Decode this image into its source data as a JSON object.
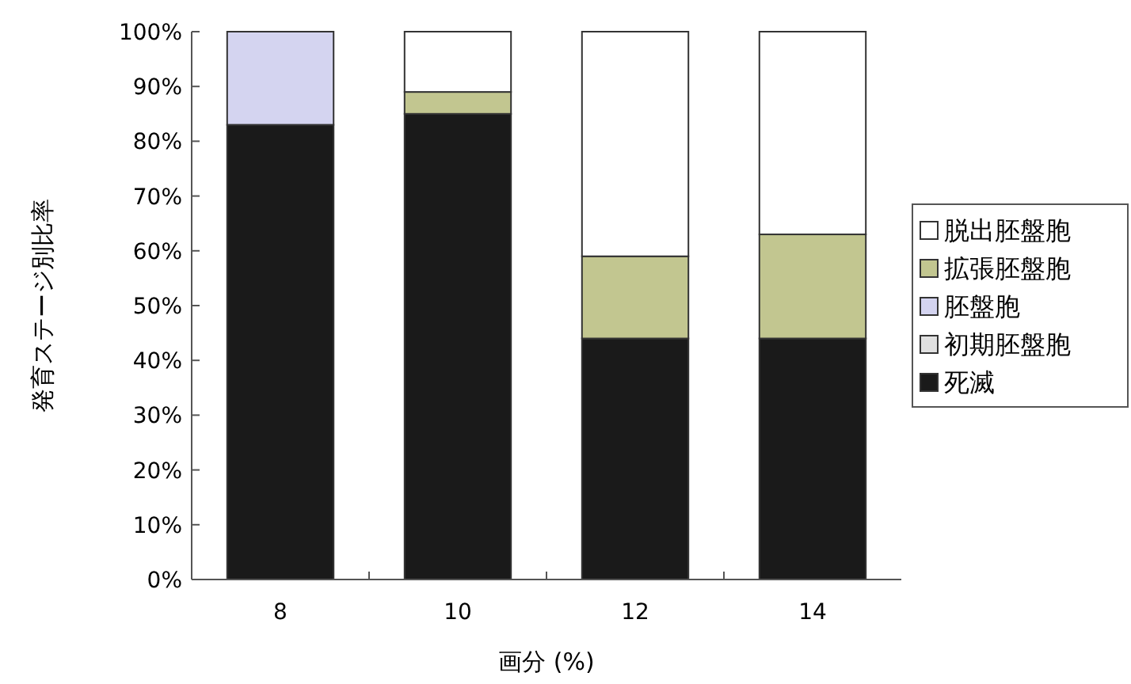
{
  "chart_data": {
    "type": "bar",
    "stacked": true,
    "xlabel": "画分 (%)",
    "ylabel": "発育ステージ別比率",
    "categories": [
      "8",
      "10",
      "12",
      "14"
    ],
    "series": [
      {
        "name": "死滅",
        "color": "#1a1a1a",
        "values": [
          83,
          85,
          44,
          44
        ]
      },
      {
        "name": "初期胚盤胞",
        "color": "#e0e0e0",
        "values": [
          0,
          0,
          0,
          0
        ]
      },
      {
        "name": "胚盤胞",
        "color": "#d4d4f0",
        "values": [
          17,
          0,
          0,
          0
        ]
      },
      {
        "name": "拡張胚盤胞",
        "color": "#c2c690",
        "values": [
          0,
          4,
          15,
          19
        ]
      },
      {
        "name": "脱出胚盤胞",
        "color": "#ffffff",
        "values": [
          0,
          11,
          41,
          37
        ]
      }
    ],
    "ylim": [
      0,
      100
    ],
    "yticks": [
      {
        "value": 0,
        "label": "0%"
      },
      {
        "value": 10,
        "label": "10%"
      },
      {
        "value": 20,
        "label": "20%"
      },
      {
        "value": 30,
        "label": "30%"
      },
      {
        "value": 40,
        "label": "40%"
      },
      {
        "value": 50,
        "label": "50%"
      },
      {
        "value": 60,
        "label": "60%"
      },
      {
        "value": 70,
        "label": "70%"
      },
      {
        "value": 80,
        "label": "80%"
      },
      {
        "value": 90,
        "label": "90%"
      },
      {
        "value": 100,
        "label": "100%"
      }
    ],
    "grid": false,
    "legend": "right"
  }
}
